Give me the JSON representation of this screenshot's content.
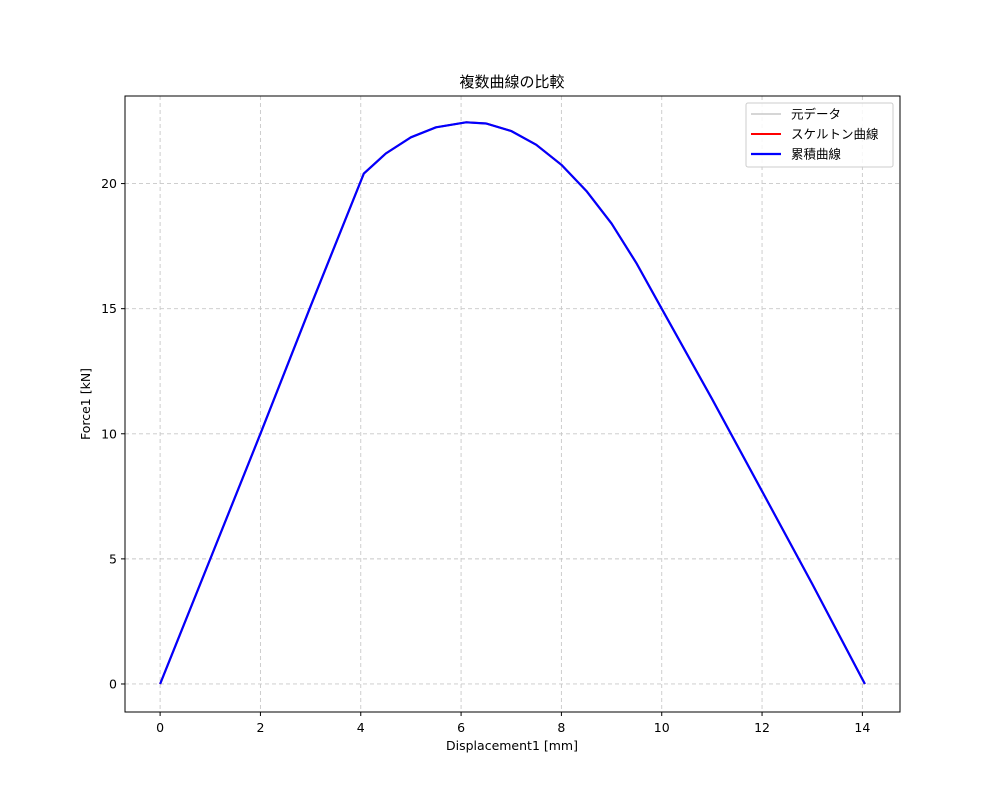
{
  "chart_data": {
    "type": "line",
    "title": "複数曲線の比較",
    "xlabel": "Displacement1 [mm]",
    "ylabel": "Force1 [kN]",
    "xlim": [
      -0.7,
      14.75
    ],
    "ylim": [
      -1.12,
      23.5
    ],
    "x_ticks": [
      0,
      2,
      4,
      6,
      8,
      10,
      12,
      14
    ],
    "y_ticks": [
      0,
      5,
      10,
      15,
      20
    ],
    "grid": true,
    "legend_position": "top-right",
    "series": [
      {
        "name": "元データ",
        "color": "#c8c8c8",
        "x": [
          0,
          1,
          2,
          3,
          4.06,
          4.5,
          5.0,
          5.5,
          6.1,
          6.5,
          7.0,
          7.5,
          8.0,
          8.5,
          9.0,
          9.5,
          10.0,
          11.0,
          12.0,
          13.0,
          14.05
        ],
        "y": [
          0,
          5.0,
          10.0,
          15.1,
          20.4,
          21.2,
          21.85,
          22.25,
          22.45,
          22.4,
          22.1,
          21.55,
          20.75,
          19.7,
          18.4,
          16.8,
          15.0,
          11.4,
          7.7,
          4.0,
          0
        ]
      },
      {
        "name": "スケルトン曲線",
        "color": "#ff0000",
        "x": [
          0,
          1,
          2,
          3,
          4.06,
          4.5,
          5.0,
          5.5,
          6.1,
          6.5,
          7.0,
          7.5,
          8.0,
          8.5,
          9.0,
          9.5,
          10.0,
          11.0,
          12.0,
          13.0,
          14.05
        ],
        "y": [
          0,
          5.0,
          10.0,
          15.1,
          20.4,
          21.2,
          21.85,
          22.25,
          22.45,
          22.4,
          22.1,
          21.55,
          20.75,
          19.7,
          18.4,
          16.8,
          15.0,
          11.4,
          7.7,
          4.0,
          0
        ]
      },
      {
        "name": "累積曲線",
        "color": "#0000ff",
        "x": [
          0,
          1,
          2,
          3,
          4.06,
          4.5,
          5.0,
          5.5,
          6.1,
          6.5,
          7.0,
          7.5,
          8.0,
          8.5,
          9.0,
          9.5,
          10.0,
          11.0,
          12.0,
          13.0,
          14.05
        ],
        "y": [
          0,
          5.0,
          10.0,
          15.1,
          20.4,
          21.2,
          21.85,
          22.25,
          22.45,
          22.4,
          22.1,
          21.55,
          20.75,
          19.7,
          18.4,
          16.8,
          15.0,
          11.4,
          7.7,
          4.0,
          0
        ]
      }
    ]
  }
}
